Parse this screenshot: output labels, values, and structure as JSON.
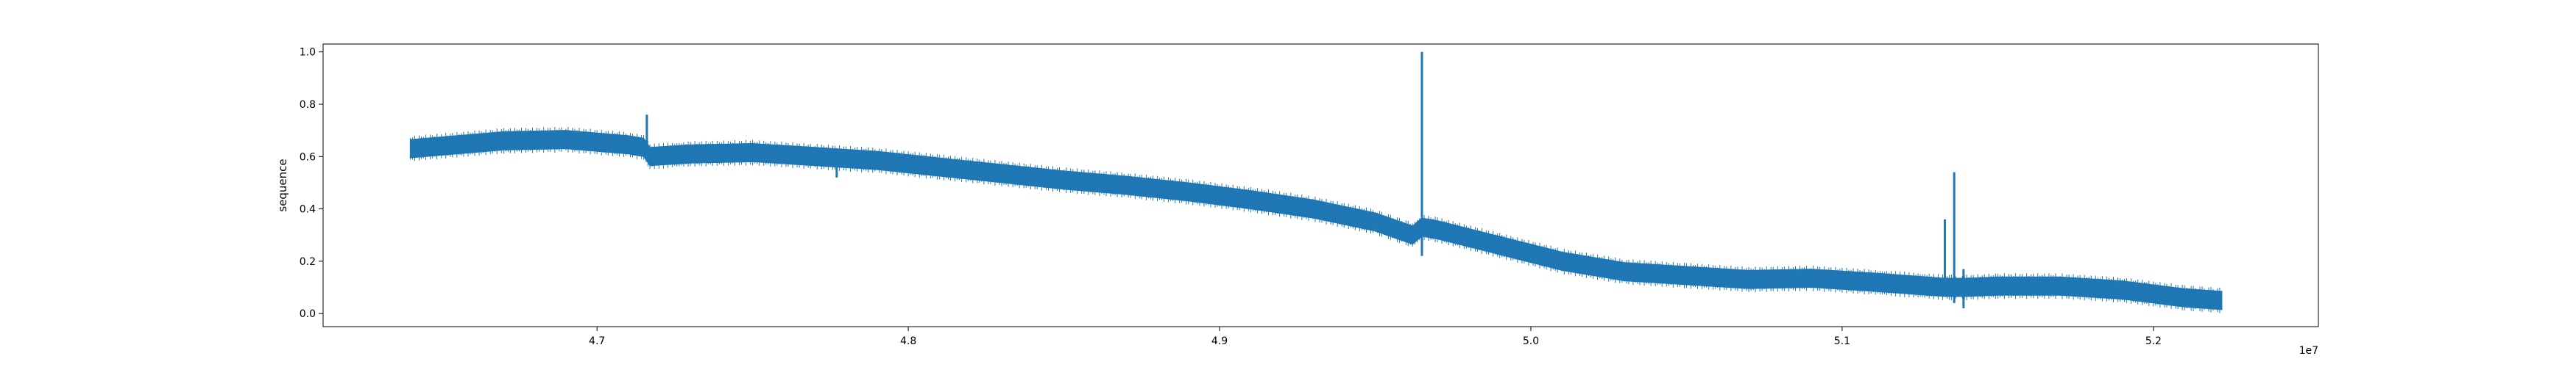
{
  "chart_data": {
    "type": "line",
    "title": "",
    "xlabel": "",
    "ylabel": "sequence",
    "x_offset_label": "1e7",
    "xlim": [
      4.612,
      5.253
    ],
    "ylim": [
      -0.05,
      1.03
    ],
    "x_ticks": [
      4.7,
      4.8,
      4.9,
      5.0,
      5.1,
      5.2
    ],
    "x_tick_labels": [
      "4.7",
      "4.8",
      "4.9",
      "5.0",
      "5.1",
      "5.2"
    ],
    "y_ticks": [
      0.0,
      0.2,
      0.4,
      0.6,
      0.8,
      1.0
    ],
    "y_tick_labels": [
      "0.0",
      "0.2",
      "0.4",
      "0.6",
      "0.8",
      "1.0"
    ],
    "grid": false,
    "color": "#1f77b4",
    "series": [
      {
        "x": [
          4.64,
          4.65,
          4.67,
          4.69,
          4.71,
          4.715,
          4.717,
          4.73,
          4.75,
          4.77,
          4.79,
          4.81,
          4.83,
          4.85,
          4.87,
          4.89,
          4.91,
          4.93,
          4.95,
          4.962,
          4.965,
          4.97,
          4.99,
          5.01,
          5.03,
          5.05,
          5.07,
          5.09,
          5.11,
          5.133,
          5.14,
          5.15,
          5.17,
          5.19,
          5.21,
          5.222
        ],
        "y": [
          0.63,
          0.64,
          0.66,
          0.665,
          0.645,
          0.635,
          0.6,
          0.61,
          0.615,
          0.6,
          0.585,
          0.56,
          0.535,
          0.51,
          0.49,
          0.465,
          0.435,
          0.4,
          0.35,
          0.3,
          0.33,
          0.32,
          0.26,
          0.2,
          0.16,
          0.145,
          0.13,
          0.135,
          0.12,
          0.1,
          0.1,
          0.105,
          0.105,
          0.09,
          0.06,
          0.05
        ]
      }
    ],
    "band_halfwidth": 0.035,
    "spikes": [
      {
        "x": 4.716,
        "ymin": 0.58,
        "ymax": 0.76
      },
      {
        "x": 4.777,
        "ymin": 0.52,
        "ymax": 0.6
      },
      {
        "x": 4.965,
        "ymin": 0.22,
        "ymax": 1.0
      },
      {
        "x": 5.133,
        "ymin": 0.07,
        "ymax": 0.36
      },
      {
        "x": 5.136,
        "ymin": 0.04,
        "ymax": 0.54
      },
      {
        "x": 5.139,
        "ymin": 0.02,
        "ymax": 0.17
      }
    ]
  }
}
